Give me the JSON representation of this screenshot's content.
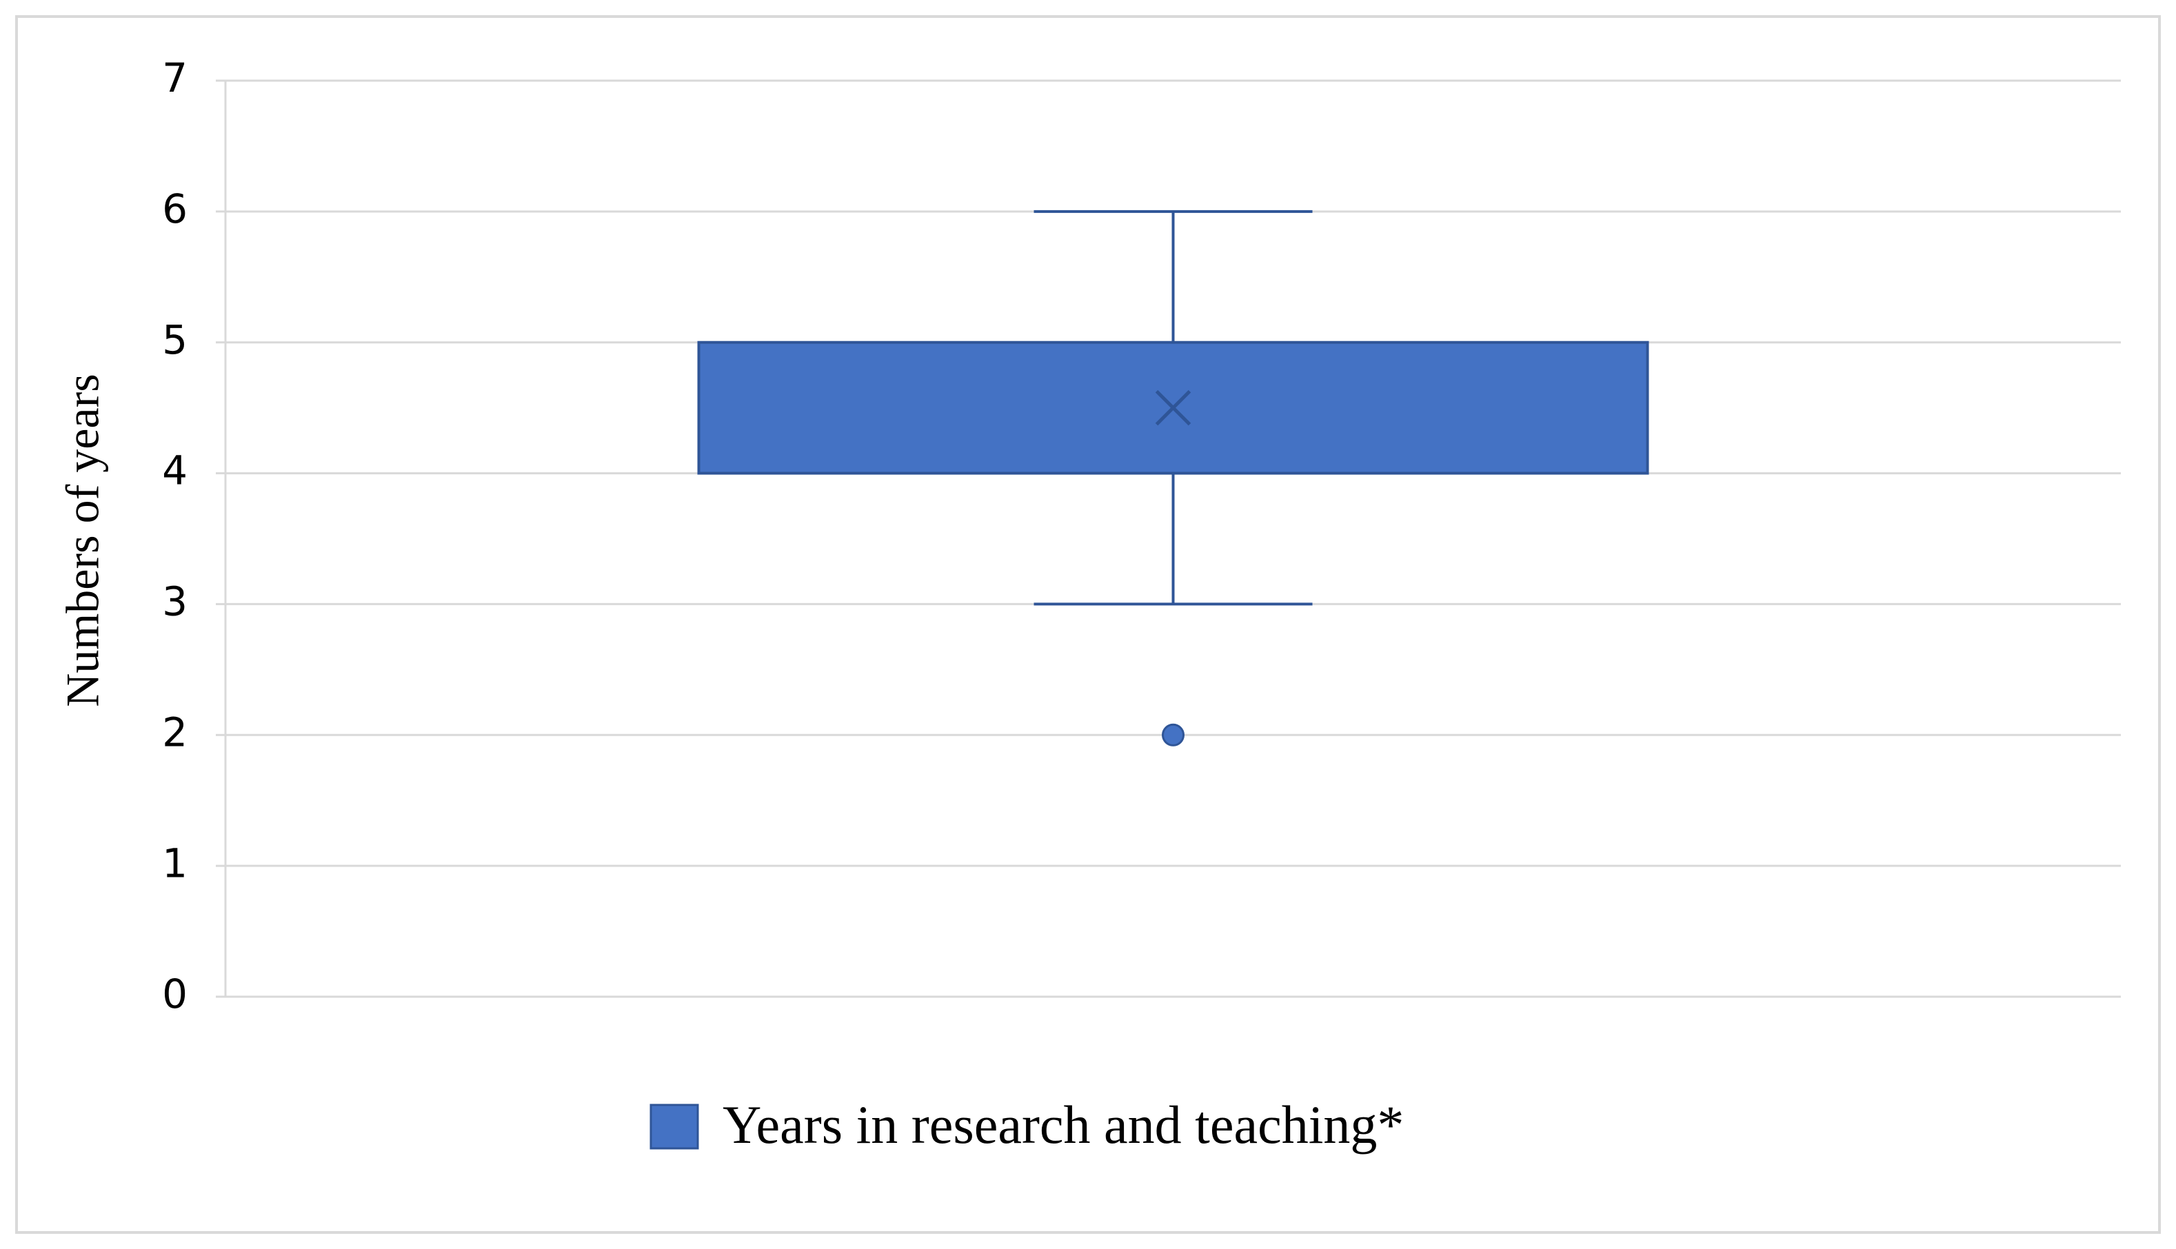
{
  "chart_data": {
    "type": "box",
    "y_label": "Numbers of years",
    "series": [
      {
        "name": "Years in research and teaching*",
        "color": "#4472c4",
        "min": 3,
        "q1": 4,
        "q3": 5,
        "max": 6,
        "mean": 4.5,
        "outliers": [
          2
        ]
      }
    ],
    "ylim": [
      0,
      7
    ],
    "yticks": [
      0,
      1,
      2,
      3,
      4,
      5,
      6,
      7
    ],
    "grid": true
  }
}
